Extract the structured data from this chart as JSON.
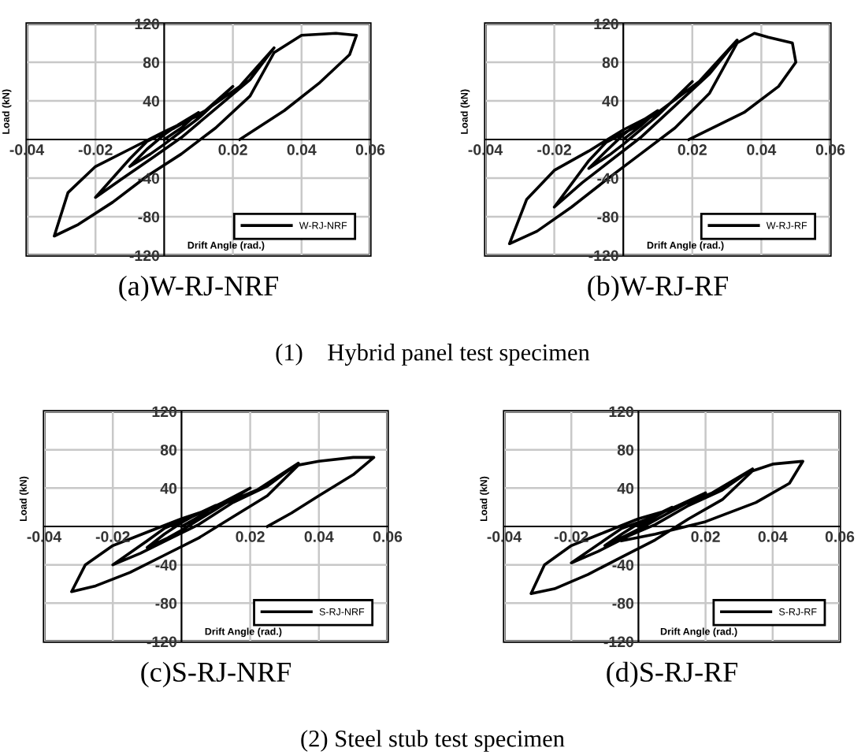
{
  "chart_data": [
    {
      "type": "line",
      "title": "(a)W-RJ-NRF",
      "xlabel": "Drift Angle (rad.)",
      "ylabel": "Load (kN)",
      "xlim": [
        -0.04,
        0.06
      ],
      "ylim": [
        -120,
        120
      ],
      "xticks": [
        -0.04,
        -0.02,
        0.02,
        0.04,
        0.06
      ],
      "yticks": [
        -120,
        -80,
        -40,
        40,
        80,
        120
      ],
      "grid": true,
      "legend": "bottom right",
      "line_style": "solid",
      "annotations": [
        "(1)    Hybrid panel test specimen"
      ],
      "series": [
        {
          "name": "W-RJ-NRF",
          "color": "#000000",
          "x": [
            0,
            0.005,
            0.01,
            0.004,
            0,
            -0.005,
            -0.01,
            -0.004,
            0,
            0.01,
            0.02,
            0.012,
            0.003,
            -0.005,
            -0.01,
            -0.02,
            -0.012,
            -0.003,
            0.005,
            0.015,
            0.025,
            0.032,
            0.022,
            0.01,
            0,
            -0.01,
            -0.02,
            -0.028,
            -0.032,
            -0.025,
            -0.015,
            -0.005,
            0.005,
            0.015,
            0.025,
            0.032,
            0.04,
            0.05,
            0.056,
            0.054,
            0.045,
            0.035,
            0.022
          ],
          "values": [
            0,
            12,
            28,
            15,
            5,
            -10,
            -28,
            -15,
            -5,
            22,
            55,
            30,
            12,
            -2,
            -20,
            -60,
            -40,
            -18,
            2,
            32,
            62,
            95,
            55,
            25,
            8,
            -10,
            -28,
            -55,
            -100,
            -88,
            -65,
            -38,
            -15,
            12,
            45,
            90,
            108,
            110,
            108,
            88,
            58,
            30,
            0
          ]
        }
      ]
    },
    {
      "type": "line",
      "title": "(b)W-RJ-RF",
      "xlabel": "Drift Angle (rad.)",
      "ylabel": "Load (kN)",
      "xlim": [
        -0.04,
        0.06
      ],
      "ylim": [
        -120,
        120
      ],
      "xticks": [
        -0.04,
        -0.02,
        0.02,
        0.04,
        0.06
      ],
      "yticks": [
        -120,
        -80,
        -40,
        40,
        80,
        120
      ],
      "grid": true,
      "legend": "bottom right",
      "line_style": "solid",
      "series": [
        {
          "name": "W-RJ-RF",
          "color": "#000000",
          "x": [
            0,
            0.005,
            0.01,
            0.004,
            0,
            -0.005,
            -0.01,
            -0.004,
            0,
            0.01,
            0.02,
            0.012,
            0.003,
            -0.005,
            -0.01,
            -0.02,
            -0.012,
            -0.003,
            0.005,
            0.015,
            0.025,
            0.033,
            0.022,
            0.01,
            0,
            -0.01,
            -0.02,
            -0.028,
            -0.033,
            -0.025,
            -0.015,
            -0.005,
            0.005,
            0.015,
            0.025,
            0.033,
            0.038,
            0.042,
            0.049,
            0.05,
            0.045,
            0.035,
            0.019
          ],
          "values": [
            0,
            14,
            30,
            16,
            5,
            -12,
            -30,
            -16,
            -5,
            25,
            60,
            32,
            12,
            -3,
            -22,
            -70,
            -45,
            -20,
            2,
            35,
            68,
            103,
            60,
            28,
            10,
            -12,
            -32,
            -62,
            -108,
            -95,
            -70,
            -42,
            -15,
            12,
            48,
            100,
            110,
            106,
            100,
            80,
            55,
            28,
            0
          ]
        }
      ]
    },
    {
      "type": "line",
      "title": "(c)S-RJ-NRF",
      "xlabel": "Drift Angle (rad.)",
      "ylabel": "Load (kN)",
      "xlim": [
        -0.04,
        0.06
      ],
      "ylim": [
        -120,
        120
      ],
      "xticks": [
        -0.04,
        -0.02,
        0.02,
        0.04,
        0.06
      ],
      "yticks": [
        -120,
        -80,
        -40,
        40,
        80,
        120
      ],
      "grid": true,
      "legend": "bottom right",
      "line_style": "solid",
      "annotations": [
        "(2) Steel stub test specimen"
      ],
      "series": [
        {
          "name": "S-RJ-NRF",
          "color": "#000000",
          "x": [
            0,
            0.005,
            0.01,
            0.004,
            0,
            -0.005,
            -0.01,
            -0.004,
            0,
            0.01,
            0.02,
            0.012,
            0.003,
            -0.005,
            -0.01,
            -0.02,
            -0.012,
            -0.003,
            0.005,
            0.015,
            0.025,
            0.034,
            0.022,
            0.01,
            0,
            -0.01,
            -0.02,
            -0.028,
            -0.032,
            -0.025,
            -0.015,
            -0.005,
            0.005,
            0.015,
            0.025,
            0.034,
            0.04,
            0.05,
            0.056,
            0.05,
            0.04,
            0.032,
            0.025
          ],
          "values": [
            0,
            10,
            22,
            12,
            4,
            -8,
            -22,
            -12,
            -4,
            18,
            40,
            25,
            10,
            -2,
            -15,
            -40,
            -28,
            -12,
            2,
            25,
            42,
            66,
            38,
            20,
            8,
            -6,
            -20,
            -40,
            -68,
            -62,
            -48,
            -30,
            -12,
            10,
            32,
            64,
            68,
            72,
            72,
            54,
            32,
            14,
            0
          ]
        }
      ]
    },
    {
      "type": "line",
      "title": "(d)S-RJ-RF",
      "xlabel": "Drift Angle (rad.)",
      "ylabel": "Load (kN)",
      "xlim": [
        -0.04,
        0.06
      ],
      "ylim": [
        -120,
        120
      ],
      "xticks": [
        -0.04,
        -0.02,
        0.02,
        0.04,
        0.06
      ],
      "yticks": [
        -120,
        -80,
        -40,
        40,
        80,
        120
      ],
      "grid": true,
      "legend": "bottom right",
      "line_style": "solid",
      "series": [
        {
          "name": "S-RJ-RF",
          "color": "#000000",
          "x": [
            0,
            0.005,
            0.01,
            0.004,
            0,
            -0.005,
            -0.01,
            -0.004,
            0,
            0.01,
            0.02,
            0.012,
            0.003,
            -0.005,
            -0.01,
            -0.02,
            -0.012,
            -0.003,
            0.005,
            0.015,
            0.025,
            0.034,
            0.022,
            0.01,
            0,
            -0.01,
            -0.02,
            -0.028,
            -0.032,
            -0.025,
            -0.015,
            -0.005,
            0.005,
            0.015,
            0.025,
            0.034,
            0.04,
            0.049,
            0.045,
            0.035,
            0.02,
            0.005,
            -0.005
          ],
          "values": [
            0,
            10,
            20,
            10,
            3,
            -8,
            -20,
            -10,
            -3,
            16,
            35,
            22,
            8,
            -2,
            -14,
            -38,
            -26,
            -10,
            2,
            22,
            38,
            60,
            35,
            18,
            8,
            -6,
            -20,
            -40,
            -70,
            -65,
            -50,
            -32,
            -14,
            8,
            28,
            58,
            65,
            68,
            45,
            25,
            5,
            -8,
            -15
          ]
        }
      ]
    }
  ]
}
